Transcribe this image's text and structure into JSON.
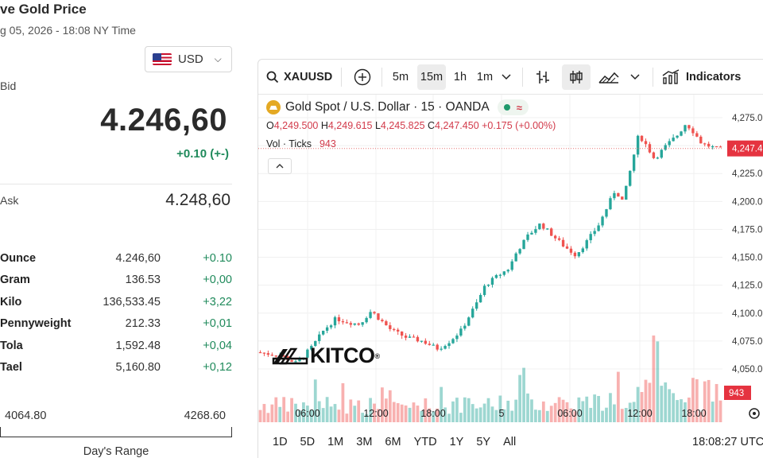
{
  "header": {
    "title": "ve Gold Price",
    "subtitle": "g 05, 2026 - 18:08 NY Time",
    "currency": "USD"
  },
  "quote": {
    "bid_label": "Bid",
    "bid_price": "4.246,60",
    "bid_change": "+0.10 (+-)",
    "ask_label": "Ask",
    "ask_price": "4.248,60"
  },
  "units": [
    {
      "name": "Ounce",
      "value": "4.246,60",
      "change": "+0.10"
    },
    {
      "name": "Gram",
      "value": "136.53",
      "change": "+0,00"
    },
    {
      "name": "Kilo",
      "value": "136,533.45",
      "change": "+3,22"
    },
    {
      "name": "Pennyweight",
      "value": "212.33",
      "change": "+0,01"
    },
    {
      "name": "Tola",
      "value": "1,592.48",
      "change": "+0,04"
    },
    {
      "name": "Tael",
      "value": "5,160.80",
      "change": "+0,12"
    }
  ],
  "days_range": {
    "low": "4064.80",
    "high": "4268.60",
    "label": "Day's Range"
  },
  "toolbar": {
    "symbol": "XAUUSD",
    "intervals": [
      "5m",
      "15m",
      "1h",
      "1m"
    ],
    "active_interval": "15m",
    "indicators_label": "Indicators"
  },
  "legend": {
    "title": "Gold Spot / U.S. Dollar · 15 · OANDA",
    "o_key": "O",
    "o": "4,249.500",
    "h_key": "H",
    "h": "4,249.615",
    "l_key": "L",
    "l": "4,245.825",
    "c_key": "C",
    "c": "4,247.450",
    "change": "+0.175 (+0.00%)",
    "vol_label": "Vol · Ticks",
    "vol_value": "943"
  },
  "watermark": {
    "text": "KITCO",
    "reg": "®"
  },
  "range_buttons": [
    "1D",
    "5D",
    "1M",
    "3M",
    "6M",
    "YTD",
    "1Y",
    "5Y",
    "All"
  ],
  "clock": "18:08:27 UTC",
  "colors": {
    "up": "#26a69a",
    "down": "#ef5350",
    "price_tag": "#e53340",
    "positive_text": "#1f8a5b"
  },
  "chart_data": {
    "type": "candlestick",
    "title": "Gold Spot / U.S. Dollar · 15 · OANDA",
    "y_ticks": [
      4050,
      4075,
      4100,
      4125,
      4150,
      4175,
      4200,
      4225,
      4250,
      4275
    ],
    "ylim": [
      4028,
      4284
    ],
    "x_ticks": [
      "06:00",
      "12:00",
      "18:00",
      "5",
      "06:00",
      "12:00",
      "18:00"
    ],
    "last_price_label": "4,247.4",
    "last_price": 4247.45,
    "volume_label": "943",
    "close_path": [
      [
        0,
        4065
      ],
      [
        6,
        4062
      ],
      [
        10,
        4055
      ],
      [
        14,
        4070
      ],
      [
        17,
        4085
      ],
      [
        20,
        4095
      ],
      [
        23,
        4092
      ],
      [
        26,
        4090
      ],
      [
        29,
        4102
      ],
      [
        31,
        4095
      ],
      [
        34,
        4085
      ],
      [
        38,
        4078
      ],
      [
        42,
        4075
      ],
      [
        46,
        4068
      ],
      [
        49,
        4075
      ],
      [
        52,
        4085
      ],
      [
        54,
        4098
      ],
      [
        56,
        4110
      ],
      [
        58,
        4125
      ],
      [
        61,
        4133
      ],
      [
        64,
        4140
      ],
      [
        66,
        4155
      ],
      [
        69,
        4170
      ],
      [
        72,
        4180
      ],
      [
        75,
        4170
      ],
      [
        78,
        4160
      ],
      [
        81,
        4152
      ],
      [
        84,
        4165
      ],
      [
        87,
        4180
      ],
      [
        89,
        4195
      ],
      [
        91,
        4210
      ],
      [
        93,
        4200
      ],
      [
        95,
        4230
      ],
      [
        97,
        4260
      ],
      [
        99,
        4250
      ],
      [
        101,
        4238
      ],
      [
        104,
        4250
      ],
      [
        107,
        4260
      ],
      [
        109,
        4270
      ],
      [
        111,
        4262
      ],
      [
        113,
        4252
      ],
      [
        117,
        4247
      ]
    ],
    "candle_count": 118
  }
}
